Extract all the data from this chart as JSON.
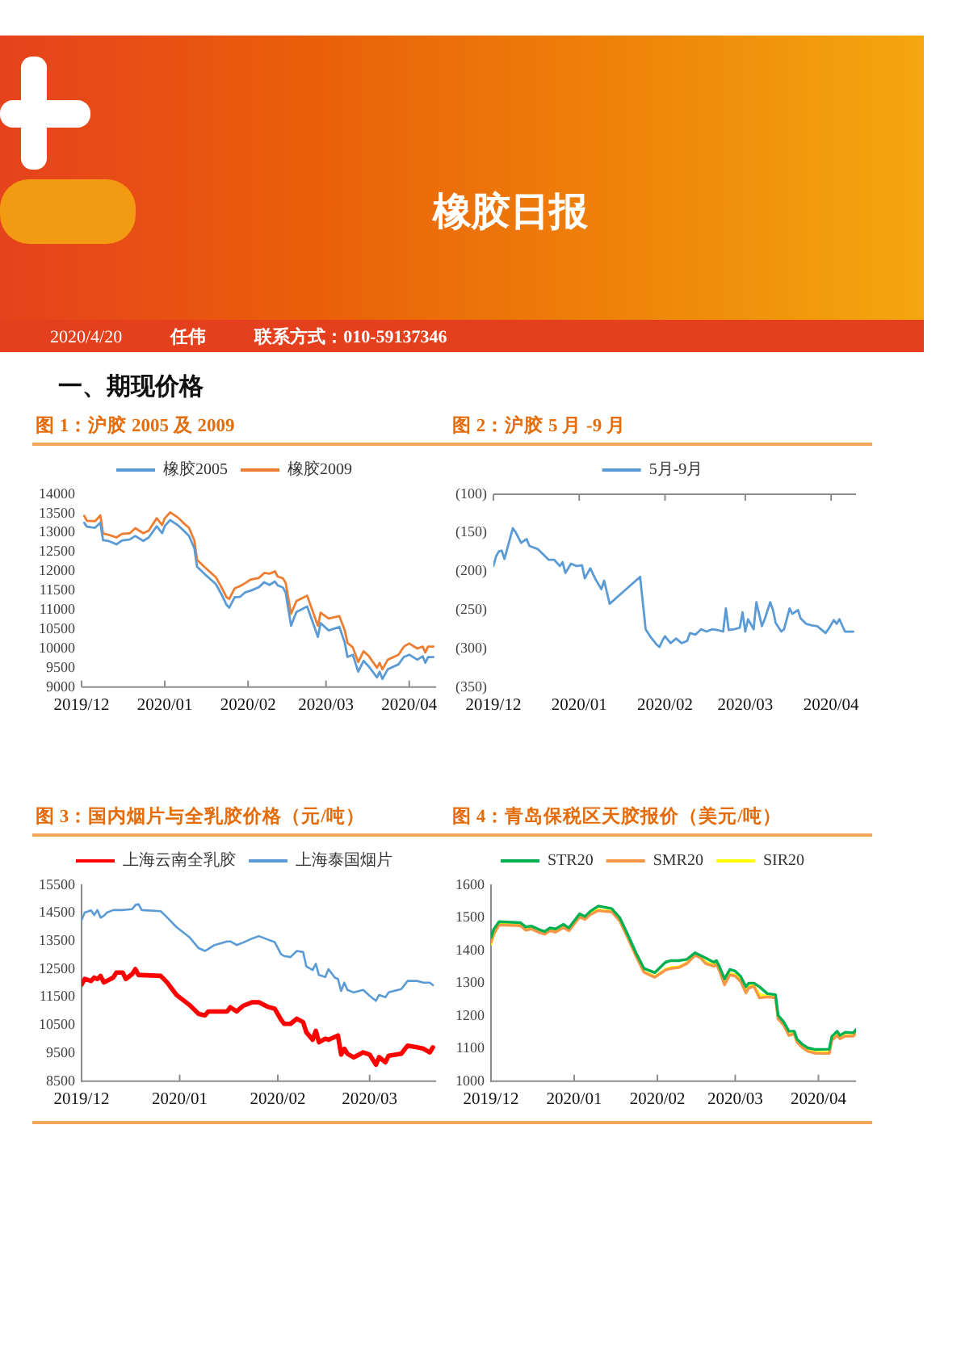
{
  "chart_data": [
    {
      "type": "other",
      "title": "橡胶日报",
      "subtitle": "一、期现价格",
      "annotations": [
        "2020/4/20",
        "任伟",
        "联系方式：010-59137346"
      ]
    },
    {
      "type": "line",
      "title": "图 1：沪胶 2005 及 2009",
      "x": [
        "2019-12-02",
        "2019-12-03",
        "2019-12-06",
        "2019-12-08",
        "2019-12-09",
        "2019-12-11",
        "2019-12-14",
        "2019-12-16",
        "2019-12-19",
        "2019-12-21",
        "2019-12-24",
        "2019-12-26",
        "2019-12-29",
        "2019-12-31",
        "2020-01-01",
        "2020-01-03",
        "2020-01-06",
        "2020-01-08",
        "2020-01-10",
        "2020-01-12",
        "2020-01-13",
        "2020-01-16",
        "2020-01-20",
        "2020-01-22",
        "2020-01-24",
        "2020-01-25",
        "2020-01-27",
        "2020-01-29",
        "2020-01-31",
        "2020-02-02",
        "2020-02-05",
        "2020-02-07",
        "2020-02-09",
        "2020-02-11",
        "2020-02-12",
        "2020-02-14",
        "2020-02-15",
        "2020-02-17",
        "2020-02-19",
        "2020-02-23",
        "2020-02-27",
        "2020-02-28",
        "2020-03-02",
        "2020-03-06",
        "2020-03-08",
        "2020-03-09",
        "2020-03-11",
        "2020-03-13",
        "2020-03-15",
        "2020-03-17",
        "2020-03-20",
        "2020-03-21",
        "2020-03-22",
        "2020-03-24",
        "2020-03-28",
        "2020-03-30",
        "2020-04-01",
        "2020-04-04",
        "2020-04-06",
        "2020-04-07",
        "2020-04-08",
        "2020-04-10"
      ],
      "series": [
        {
          "name": "橡胶2005",
          "color": "#5b9bd5",
          "values": [
            13260,
            13160,
            13130,
            13260,
            12810,
            12790,
            12700,
            12800,
            12830,
            12920,
            12790,
            12880,
            13170,
            12990,
            13180,
            13330,
            13190,
            13060,
            12920,
            12600,
            12120,
            11920,
            11670,
            11420,
            11130,
            11060,
            11330,
            11340,
            11460,
            11500,
            11590,
            11720,
            11650,
            11740,
            11640,
            11580,
            11450,
            10590,
            10950,
            11090,
            10300,
            10660,
            10470,
            10560,
            10150,
            9780,
            9840,
            9400,
            9680,
            9530,
            9250,
            9400,
            9210,
            9460,
            9590,
            9780,
            9840,
            9710,
            9800,
            9630,
            9780,
            9780
          ]
        },
        {
          "name": "橡胶2009",
          "color": "#ed7d31",
          "values": [
            13440,
            13310,
            13300,
            13450,
            12980,
            12950,
            12880,
            12970,
            12990,
            13120,
            12990,
            13060,
            13380,
            13200,
            13380,
            13530,
            13390,
            13250,
            13130,
            12800,
            12300,
            12100,
            11850,
            11600,
            11330,
            11290,
            11560,
            11620,
            11700,
            11790,
            11830,
            11960,
            11940,
            12000,
            11870,
            11820,
            11700,
            10900,
            11230,
            11370,
            10590,
            10930,
            10780,
            10840,
            10470,
            10150,
            10030,
            9650,
            9930,
            9800,
            9500,
            9630,
            9460,
            9710,
            9840,
            10050,
            10130,
            10000,
            10050,
            9900,
            10050,
            10050
          ]
        }
      ],
      "xlim": [
        "2019-12-01",
        "2020-04-11"
      ],
      "xticks": [
        {
          "value": "2019-12-01",
          "label": "2019/12"
        },
        {
          "value": "2020-01-01",
          "label": "2020/01"
        },
        {
          "value": "2020-02-01",
          "label": "2020/02"
        },
        {
          "value": "2020-03-01",
          "label": "2020/03"
        },
        {
          "value": "2020-04-01",
          "label": "2020/04"
        }
      ],
      "ylim": [
        9000,
        14000
      ],
      "yticks": [
        9000,
        9500,
        10000,
        10500,
        11000,
        11500,
        12000,
        12500,
        13000,
        13500,
        14000
      ],
      "legend": "top"
    },
    {
      "type": "line",
      "title": "图 2：沪胶 5 月 -9 月",
      "x": [
        "2019-12-01",
        "2019-12-02",
        "2019-12-03",
        "2019-12-04",
        "2019-12-05",
        "2019-12-08",
        "2019-12-09",
        "2019-12-11",
        "2019-12-13",
        "2019-12-14",
        "2019-12-17",
        "2019-12-21",
        "2019-12-23",
        "2019-12-25",
        "2019-12-26",
        "2019-12-27",
        "2019-12-29",
        "2019-12-31",
        "2020-01-02",
        "2020-01-03",
        "2020-01-05",
        "2020-01-07",
        "2020-01-09",
        "2020-01-10",
        "2020-01-12",
        "2020-01-23",
        "2020-01-25",
        "2020-01-27",
        "2020-01-29",
        "2020-01-30",
        "2020-01-31",
        "2020-02-01",
        "2020-02-03",
        "2020-02-05",
        "2020-02-07",
        "2020-02-09",
        "2020-02-10",
        "2020-02-12",
        "2020-02-14",
        "2020-02-16",
        "2020-02-18",
        "2020-02-20",
        "2020-02-22",
        "2020-02-23",
        "2020-02-24",
        "2020-02-26",
        "2020-02-28",
        "2020-02-29",
        "2020-03-01",
        "2020-03-02",
        "2020-03-04",
        "2020-03-05",
        "2020-03-07",
        "2020-03-08",
        "2020-03-10",
        "2020-03-11",
        "2020-03-12",
        "2020-03-14",
        "2020-03-15",
        "2020-03-17",
        "2020-03-18",
        "2020-03-20",
        "2020-03-21",
        "2020-03-23",
        "2020-03-25",
        "2020-03-27",
        "2020-03-30",
        "2020-03-31",
        "2020-04-02",
        "2020-04-03",
        "2020-04-04",
        "2020-04-06",
        "2020-04-08",
        "2020-04-09"
      ],
      "series": [
        {
          "name": "5月-9月",
          "color": "#5b9bd5",
          "values": [
            -193,
            -180,
            -174,
            -173,
            -184,
            -144,
            -149,
            -163,
            -158,
            -167,
            -171,
            -185,
            -185,
            -193,
            -188,
            -202,
            -190,
            -193,
            -192,
            -209,
            -196,
            -211,
            -223,
            -212,
            -242,
            -207,
            -275,
            -286,
            -295,
            -298,
            -290,
            -284,
            -293,
            -287,
            -293,
            -290,
            -280,
            -282,
            -275,
            -278,
            -275,
            -276,
            -278,
            -248,
            -276,
            -275,
            -273,
            -253,
            -278,
            -262,
            -275,
            -240,
            -271,
            -262,
            -240,
            -250,
            -267,
            -278,
            -275,
            -248,
            -255,
            -250,
            -261,
            -268,
            -270,
            -271,
            -280,
            -275,
            -263,
            -268,
            -262,
            -278,
            -278,
            -278
          ]
        }
      ],
      "xlim": [
        "2019-12-01",
        "2020-04-10"
      ],
      "xticks": [
        {
          "value": "2019-12-01",
          "label": "2019/12"
        },
        {
          "value": "2020-01-01",
          "label": "2020/01"
        },
        {
          "value": "2020-02-01",
          "label": "2020/02"
        },
        {
          "value": "2020-03-01",
          "label": "2020/03"
        },
        {
          "value": "2020-04-01",
          "label": "2020/04"
        }
      ],
      "ylim": [
        -350,
        -100
      ],
      "yticks": [
        {
          "value": -350,
          "label": "(350)"
        },
        {
          "value": -300,
          "label": "(300)"
        },
        {
          "value": -250,
          "label": "(250)"
        },
        {
          "value": -200,
          "label": "(200)"
        },
        {
          "value": -150,
          "label": "(150)"
        },
        {
          "value": -100,
          "label": "(100)"
        }
      ],
      "legend": "top"
    },
    {
      "type": "line",
      "title": "图 3：国内烟片与全乳胶价格（元/吨）",
      "x": [
        "2019-12-01",
        "2019-12-02",
        "2019-12-04",
        "2019-12-05",
        "2019-12-06",
        "2019-12-07",
        "2019-12-08",
        "2019-12-09",
        "2019-12-11",
        "2019-12-12",
        "2019-12-14",
        "2019-12-15",
        "2019-12-17",
        "2019-12-18",
        "2019-12-19",
        "2019-12-20",
        "2019-12-26",
        "2019-12-28",
        "2019-12-31",
        "2020-01-04",
        "2020-01-07",
        "2020-01-09",
        "2020-01-10",
        "2020-01-12",
        "2020-01-16",
        "2020-01-17",
        "2020-01-19",
        "2020-01-21",
        "2020-01-24",
        "2020-01-26",
        "2020-01-29",
        "2020-01-31",
        "2020-02-02",
        "2020-02-03",
        "2020-02-05",
        "2020-02-07",
        "2020-02-09",
        "2020-02-10",
        "2020-02-12",
        "2020-02-13",
        "2020-02-14",
        "2020-02-16",
        "2020-02-17",
        "2020-02-19",
        "2020-02-20",
        "2020-02-21",
        "2020-02-22",
        "2020-02-23",
        "2020-02-25",
        "2020-02-28",
        "2020-03-01",
        "2020-03-03",
        "2020-03-04",
        "2020-03-06",
        "2020-03-07",
        "2020-03-11",
        "2020-03-13",
        "2020-03-16",
        "2020-03-18",
        "2020-03-20",
        "2020-03-21"
      ],
      "series": [
        {
          "name": "上海云南全乳胶",
          "color": "#ff0000",
          "values": [
            11950,
            12150,
            12080,
            12200,
            12150,
            12260,
            12030,
            12080,
            12200,
            12380,
            12380,
            12150,
            12330,
            12500,
            12290,
            12290,
            12260,
            12030,
            11580,
            11230,
            10900,
            10850,
            10990,
            10990,
            10990,
            11140,
            10990,
            11190,
            11320,
            11320,
            11150,
            11090,
            10700,
            10550,
            10550,
            10730,
            10610,
            10250,
            9980,
            10300,
            9890,
            10020,
            9980,
            10080,
            10130,
            9450,
            9660,
            9480,
            9350,
            9530,
            9450,
            9090,
            9360,
            9180,
            9410,
            9480,
            9770,
            9710,
            9660,
            9530,
            9710
          ]
        },
        {
          "name": "上海泰国烟片",
          "color": "#5b9bd5",
          "values": [
            14250,
            14520,
            14600,
            14430,
            14610,
            14340,
            14400,
            14520,
            14610,
            14610,
            14610,
            14620,
            14640,
            14790,
            14820,
            14610,
            14570,
            14350,
            14000,
            13650,
            13250,
            13150,
            13220,
            13360,
            13490,
            13490,
            13360,
            13450,
            13600,
            13680,
            13550,
            13470,
            13040,
            12970,
            12930,
            13150,
            13110,
            12600,
            12470,
            12690,
            12290,
            12220,
            12500,
            12200,
            12150,
            11720,
            12020,
            11760,
            11670,
            11760,
            11550,
            11370,
            11580,
            11500,
            11670,
            11790,
            12080,
            12080,
            12020,
            12020,
            11930
          ]
        }
      ],
      "xlim": [
        "2019-12-01",
        "2020-03-22"
      ],
      "xticks": [
        {
          "value": "2019-12-01",
          "label": "2019/12"
        },
        {
          "value": "2020-01-01",
          "label": "2020/01"
        },
        {
          "value": "2020-02-01",
          "label": "2020/02"
        },
        {
          "value": "2020-03-01",
          "label": "2020/03"
        }
      ],
      "ylim": [
        8500,
        15500
      ],
      "yticks": [
        8500,
        9500,
        10500,
        11500,
        12500,
        13500,
        14500,
        15500
      ],
      "legend": "top"
    },
    {
      "type": "line",
      "title": "图 4：青岛保税区天胶报价（美元/吨）",
      "x": [
        "2019-12-01",
        "2019-12-02",
        "2019-12-04",
        "2019-12-12",
        "2019-12-14",
        "2019-12-16",
        "2019-12-19",
        "2019-12-21",
        "2019-12-23",
        "2019-12-25",
        "2019-12-28",
        "2019-12-30",
        "2020-01-03",
        "2020-01-05",
        "2020-01-07",
        "2020-01-10",
        "2020-01-12",
        "2020-01-15",
        "2020-01-18",
        "2020-01-21",
        "2020-01-24",
        "2020-01-27",
        "2020-01-31",
        "2020-02-04",
        "2020-02-06",
        "2020-02-09",
        "2020-02-12",
        "2020-02-15",
        "2020-02-17",
        "2020-02-19",
        "2020-02-22",
        "2020-02-23",
        "2020-02-24",
        "2020-02-26",
        "2020-02-28",
        "2020-03-01",
        "2020-03-03",
        "2020-03-05",
        "2020-03-06",
        "2020-03-08",
        "2020-03-10",
        "2020-03-13",
        "2020-03-16",
        "2020-03-17",
        "2020-03-19",
        "2020-03-21",
        "2020-03-23",
        "2020-03-24",
        "2020-03-26",
        "2020-03-28",
        "2020-03-31",
        "2020-04-05",
        "2020-04-06",
        "2020-04-08",
        "2020-04-09",
        "2020-04-11",
        "2020-04-14",
        "2020-04-15"
      ],
      "series": [
        {
          "name": "STR20",
          "color": "#00b050",
          "values": [
            1440,
            1465,
            1488,
            1485,
            1472,
            1475,
            1464,
            1458,
            1469,
            1466,
            1480,
            1469,
            1512,
            1504,
            1520,
            1536,
            1533,
            1528,
            1500,
            1448,
            1393,
            1345,
            1332,
            1364,
            1369,
            1369,
            1373,
            1393,
            1385,
            1377,
            1364,
            1369,
            1353,
            1313,
            1342,
            1337,
            1321,
            1289,
            1300,
            1300,
            1289,
            1268,
            1265,
            1201,
            1182,
            1153,
            1153,
            1129,
            1113,
            1102,
            1097,
            1098,
            1137,
            1153,
            1140,
            1150,
            1148,
            1158
          ]
        },
        {
          "name": "SMR20",
          "color": "#f79646",
          "values": [
            1425,
            1450,
            1478,
            1476,
            1462,
            1466,
            1455,
            1450,
            1460,
            1456,
            1470,
            1460,
            1502,
            1495,
            1510,
            1522,
            1520,
            1518,
            1490,
            1438,
            1383,
            1333,
            1318,
            1340,
            1345,
            1348,
            1360,
            1385,
            1378,
            1360,
            1352,
            1358,
            1340,
            1295,
            1325,
            1322,
            1305,
            1270,
            1285,
            1290,
            1255,
            1258,
            1255,
            1190,
            1172,
            1140,
            1145,
            1120,
            1103,
            1092,
            1085,
            1085,
            1125,
            1140,
            1130,
            1138,
            1138,
            1148
          ]
        },
        {
          "name": "SIR20",
          "color": "#ffff00",
          "values": [
            1420,
            1448,
            1480,
            1478,
            1465,
            1468,
            1458,
            1452,
            1462,
            1458,
            1472,
            1462,
            1505,
            1497,
            1512,
            1525,
            1522,
            1520,
            1492,
            1440,
            1385,
            1335,
            1320,
            1342,
            1348,
            1350,
            1362,
            1387,
            1380,
            1364,
            1355,
            1360,
            1343,
            1300,
            1330,
            1325,
            1310,
            1275,
            1290,
            1292,
            1265,
            1260,
            1257,
            1192,
            1175,
            1143,
            1147,
            1122,
            1105,
            1095,
            1088,
            1088,
            1128,
            1143,
            1133,
            1140,
            1140,
            1150
          ]
        }
      ],
      "xlim": [
        "2019-12-01",
        "2020-04-15"
      ],
      "xticks": [
        {
          "value": "2019-12-01",
          "label": "2019/12"
        },
        {
          "value": "2020-01-01",
          "label": "2020/01"
        },
        {
          "value": "2020-02-01",
          "label": "2020/02"
        },
        {
          "value": "2020-03-01",
          "label": "2020/03"
        },
        {
          "value": "2020-04-01",
          "label": "2020/04"
        }
      ],
      "ylim": [
        1000,
        1600
      ],
      "yticks": [
        1000,
        1100,
        1200,
        1300,
        1400,
        1500,
        1600
      ],
      "legend": "top"
    }
  ]
}
